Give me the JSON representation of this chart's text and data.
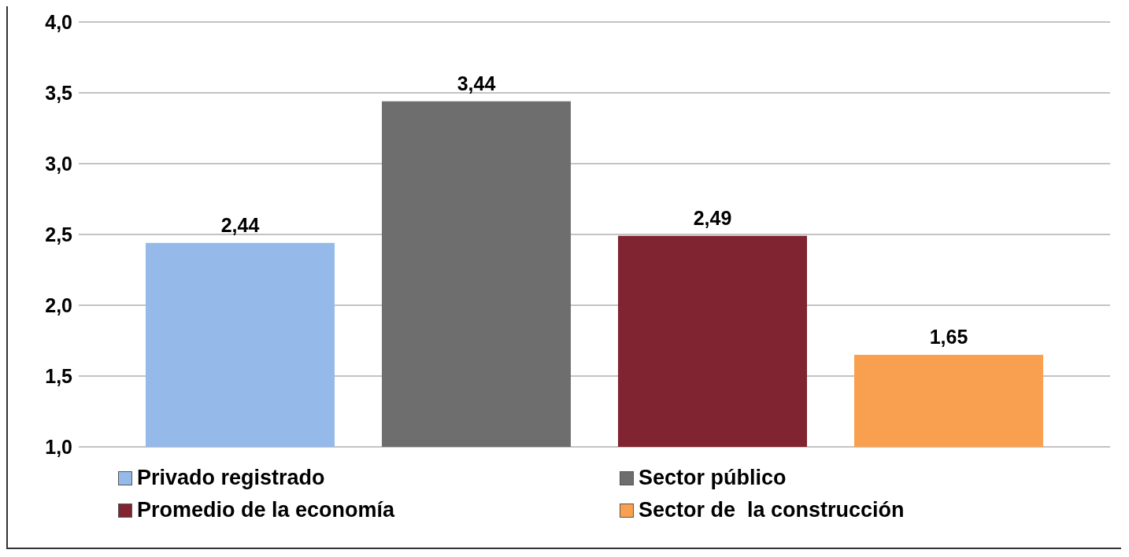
{
  "chart_data": {
    "type": "bar",
    "categories": [
      null
    ],
    "series": [
      {
        "name": "Privado registrado",
        "color": "#95b9e8",
        "values": [
          2.44
        ],
        "value_labels": [
          "2,44"
        ]
      },
      {
        "name": "Sector público",
        "color": "#6e6e6e",
        "values": [
          3.44
        ],
        "value_labels": [
          "3,44"
        ]
      },
      {
        "name": "Promedio de la economía",
        "color": "#7f2430",
        "values": [
          2.49
        ],
        "value_labels": [
          "2,49"
        ]
      },
      {
        "name": "Sector de  la construcción",
        "color": "#f9a050",
        "values": [
          1.65
        ],
        "value_labels": [
          "1,65"
        ]
      }
    ],
    "ylim": [
      1,
      4
    ],
    "yticks": [
      {
        "value": 1,
        "label": "1,0"
      },
      {
        "value": 1.5,
        "label": "1,5"
      },
      {
        "value": 2,
        "label": "2,0"
      },
      {
        "value": 2.5,
        "label": "2,5"
      },
      {
        "value": 3,
        "label": "3,0"
      },
      {
        "value": 3.5,
        "label": "3,5"
      },
      {
        "value": 4,
        "label": "4,0"
      }
    ],
    "grid": "y",
    "legend": "bottom"
  }
}
